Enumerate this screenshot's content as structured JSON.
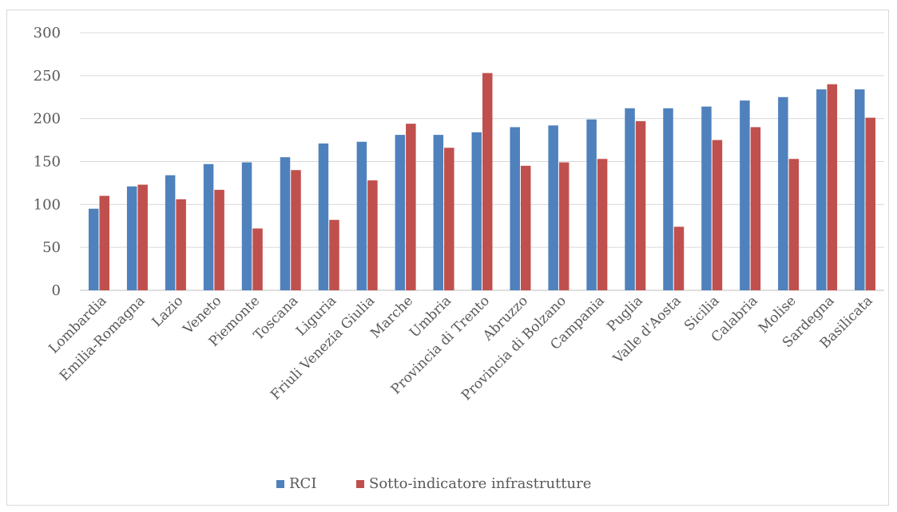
{
  "chart_data": {
    "type": "bar",
    "categories": [
      "Lombardia",
      "Emilia-Romagna",
      "Lazio",
      "Veneto",
      "Piemonte",
      "Toscana",
      "Liguria",
      "Friuli Venezia Giulia",
      "Marche",
      "Umbria",
      "Provincia di Trento",
      "Abruzzo",
      "Provincia di Bolzano",
      "Campania",
      "Puglia",
      "Valle d'Aosta",
      "Sicilia",
      "Calabria",
      "Molise",
      "Sardegna",
      "Basilicata"
    ],
    "series": [
      {
        "name": "RCI",
        "color": "#4f81bd",
        "values": [
          95,
          121,
          134,
          147,
          149,
          155,
          171,
          173,
          181,
          181,
          184,
          190,
          192,
          199,
          212,
          212,
          214,
          221,
          225,
          234,
          234
        ]
      },
      {
        "name": "Sotto-indicatore infrastrutture",
        "color": "#c0504d",
        "values": [
          110,
          123,
          106,
          117,
          72,
          140,
          82,
          128,
          194,
          166,
          253,
          145,
          149,
          153,
          197,
          74,
          175,
          190,
          153,
          240,
          201
        ]
      }
    ],
    "ylim": [
      0,
      300
    ],
    "yticks": [
      "0",
      "50",
      "100",
      "150",
      "200",
      "250",
      "300"
    ],
    "grid": true,
    "legend": "bottom"
  }
}
